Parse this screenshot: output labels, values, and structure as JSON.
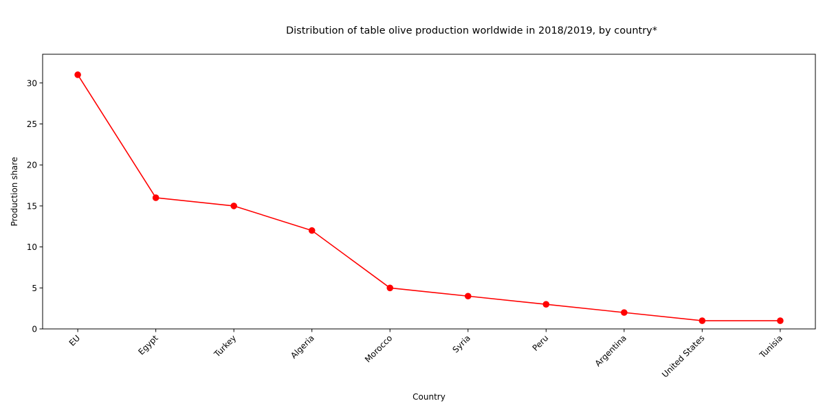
{
  "chart_data": {
    "type": "line",
    "title": "Distribution of table olive production worldwide in 2018/2019, by country*",
    "xlabel": "Country",
    "ylabel": "Production share",
    "categories": [
      "EU",
      "Egypt",
      "Turkey",
      "Algeria",
      "Morocco",
      "Syria",
      "Peru",
      "Argentina",
      "United States",
      "Tunisia"
    ],
    "series": [
      {
        "values": [
          31,
          16,
          15,
          12,
          5,
          4,
          3,
          2,
          1,
          1
        ]
      }
    ],
    "ylim": [
      0,
      33.5
    ],
    "yticks": [
      0,
      5,
      10,
      15,
      20,
      25,
      30
    ],
    "grid": false,
    "line_color": "#ff0000",
    "marker": "circle"
  }
}
